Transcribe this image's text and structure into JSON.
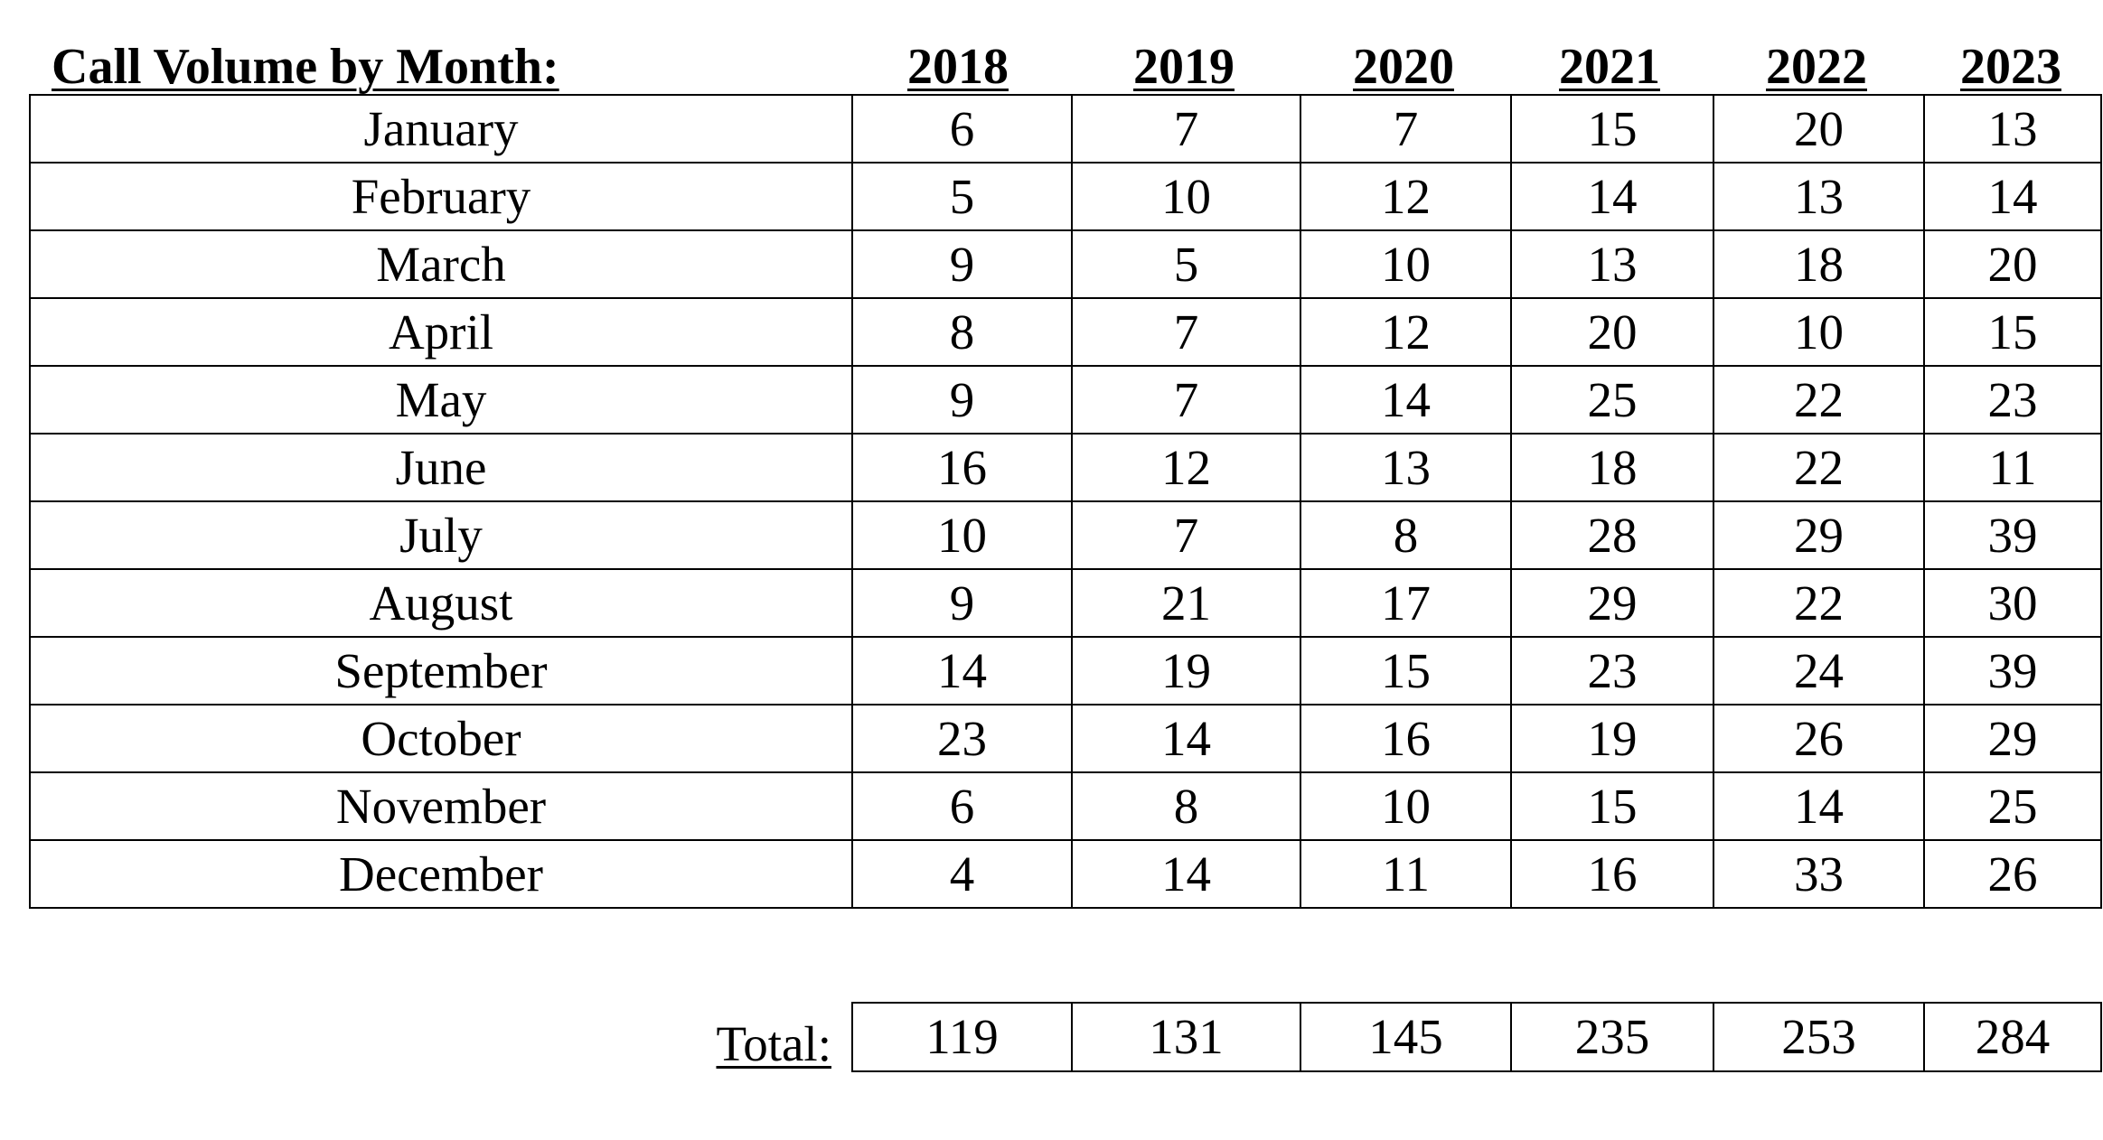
{
  "title": "Call Volume by Month:",
  "years": [
    "2018",
    "2019",
    "2020",
    "2021",
    "2022",
    "2023"
  ],
  "rows": [
    {
      "month": "January",
      "values": [
        "6",
        "7",
        "7",
        "15",
        "20",
        "13"
      ]
    },
    {
      "month": "February",
      "values": [
        "5",
        "10",
        "12",
        "14",
        "13",
        "14"
      ]
    },
    {
      "month": "March",
      "values": [
        "9",
        "5",
        "10",
        "13",
        "18",
        "20"
      ]
    },
    {
      "month": "April",
      "values": [
        "8",
        "7",
        "12",
        "20",
        "10",
        "15"
      ]
    },
    {
      "month": "May",
      "values": [
        "9",
        "7",
        "14",
        "25",
        "22",
        "23"
      ]
    },
    {
      "month": "June",
      "values": [
        "16",
        "12",
        "13",
        "18",
        "22",
        "11"
      ]
    },
    {
      "month": "July",
      "values": [
        "10",
        "7",
        "8",
        "28",
        "29",
        "39"
      ]
    },
    {
      "month": "August",
      "values": [
        "9",
        "21",
        "17",
        "29",
        "22",
        "30"
      ]
    },
    {
      "month": "September",
      "values": [
        "14",
        "19",
        "15",
        "23",
        "24",
        "39"
      ]
    },
    {
      "month": "October",
      "values": [
        "23",
        "14",
        "16",
        "19",
        "26",
        "29"
      ]
    },
    {
      "month": "November",
      "values": [
        "6",
        "8",
        "10",
        "15",
        "14",
        "25"
      ]
    },
    {
      "month": "December",
      "values": [
        "4",
        "14",
        "11",
        "16",
        "33",
        "26"
      ]
    }
  ],
  "total": {
    "label": "Total:",
    "values": [
      "119",
      "131",
      "145",
      "235",
      "253",
      "284"
    ]
  }
}
